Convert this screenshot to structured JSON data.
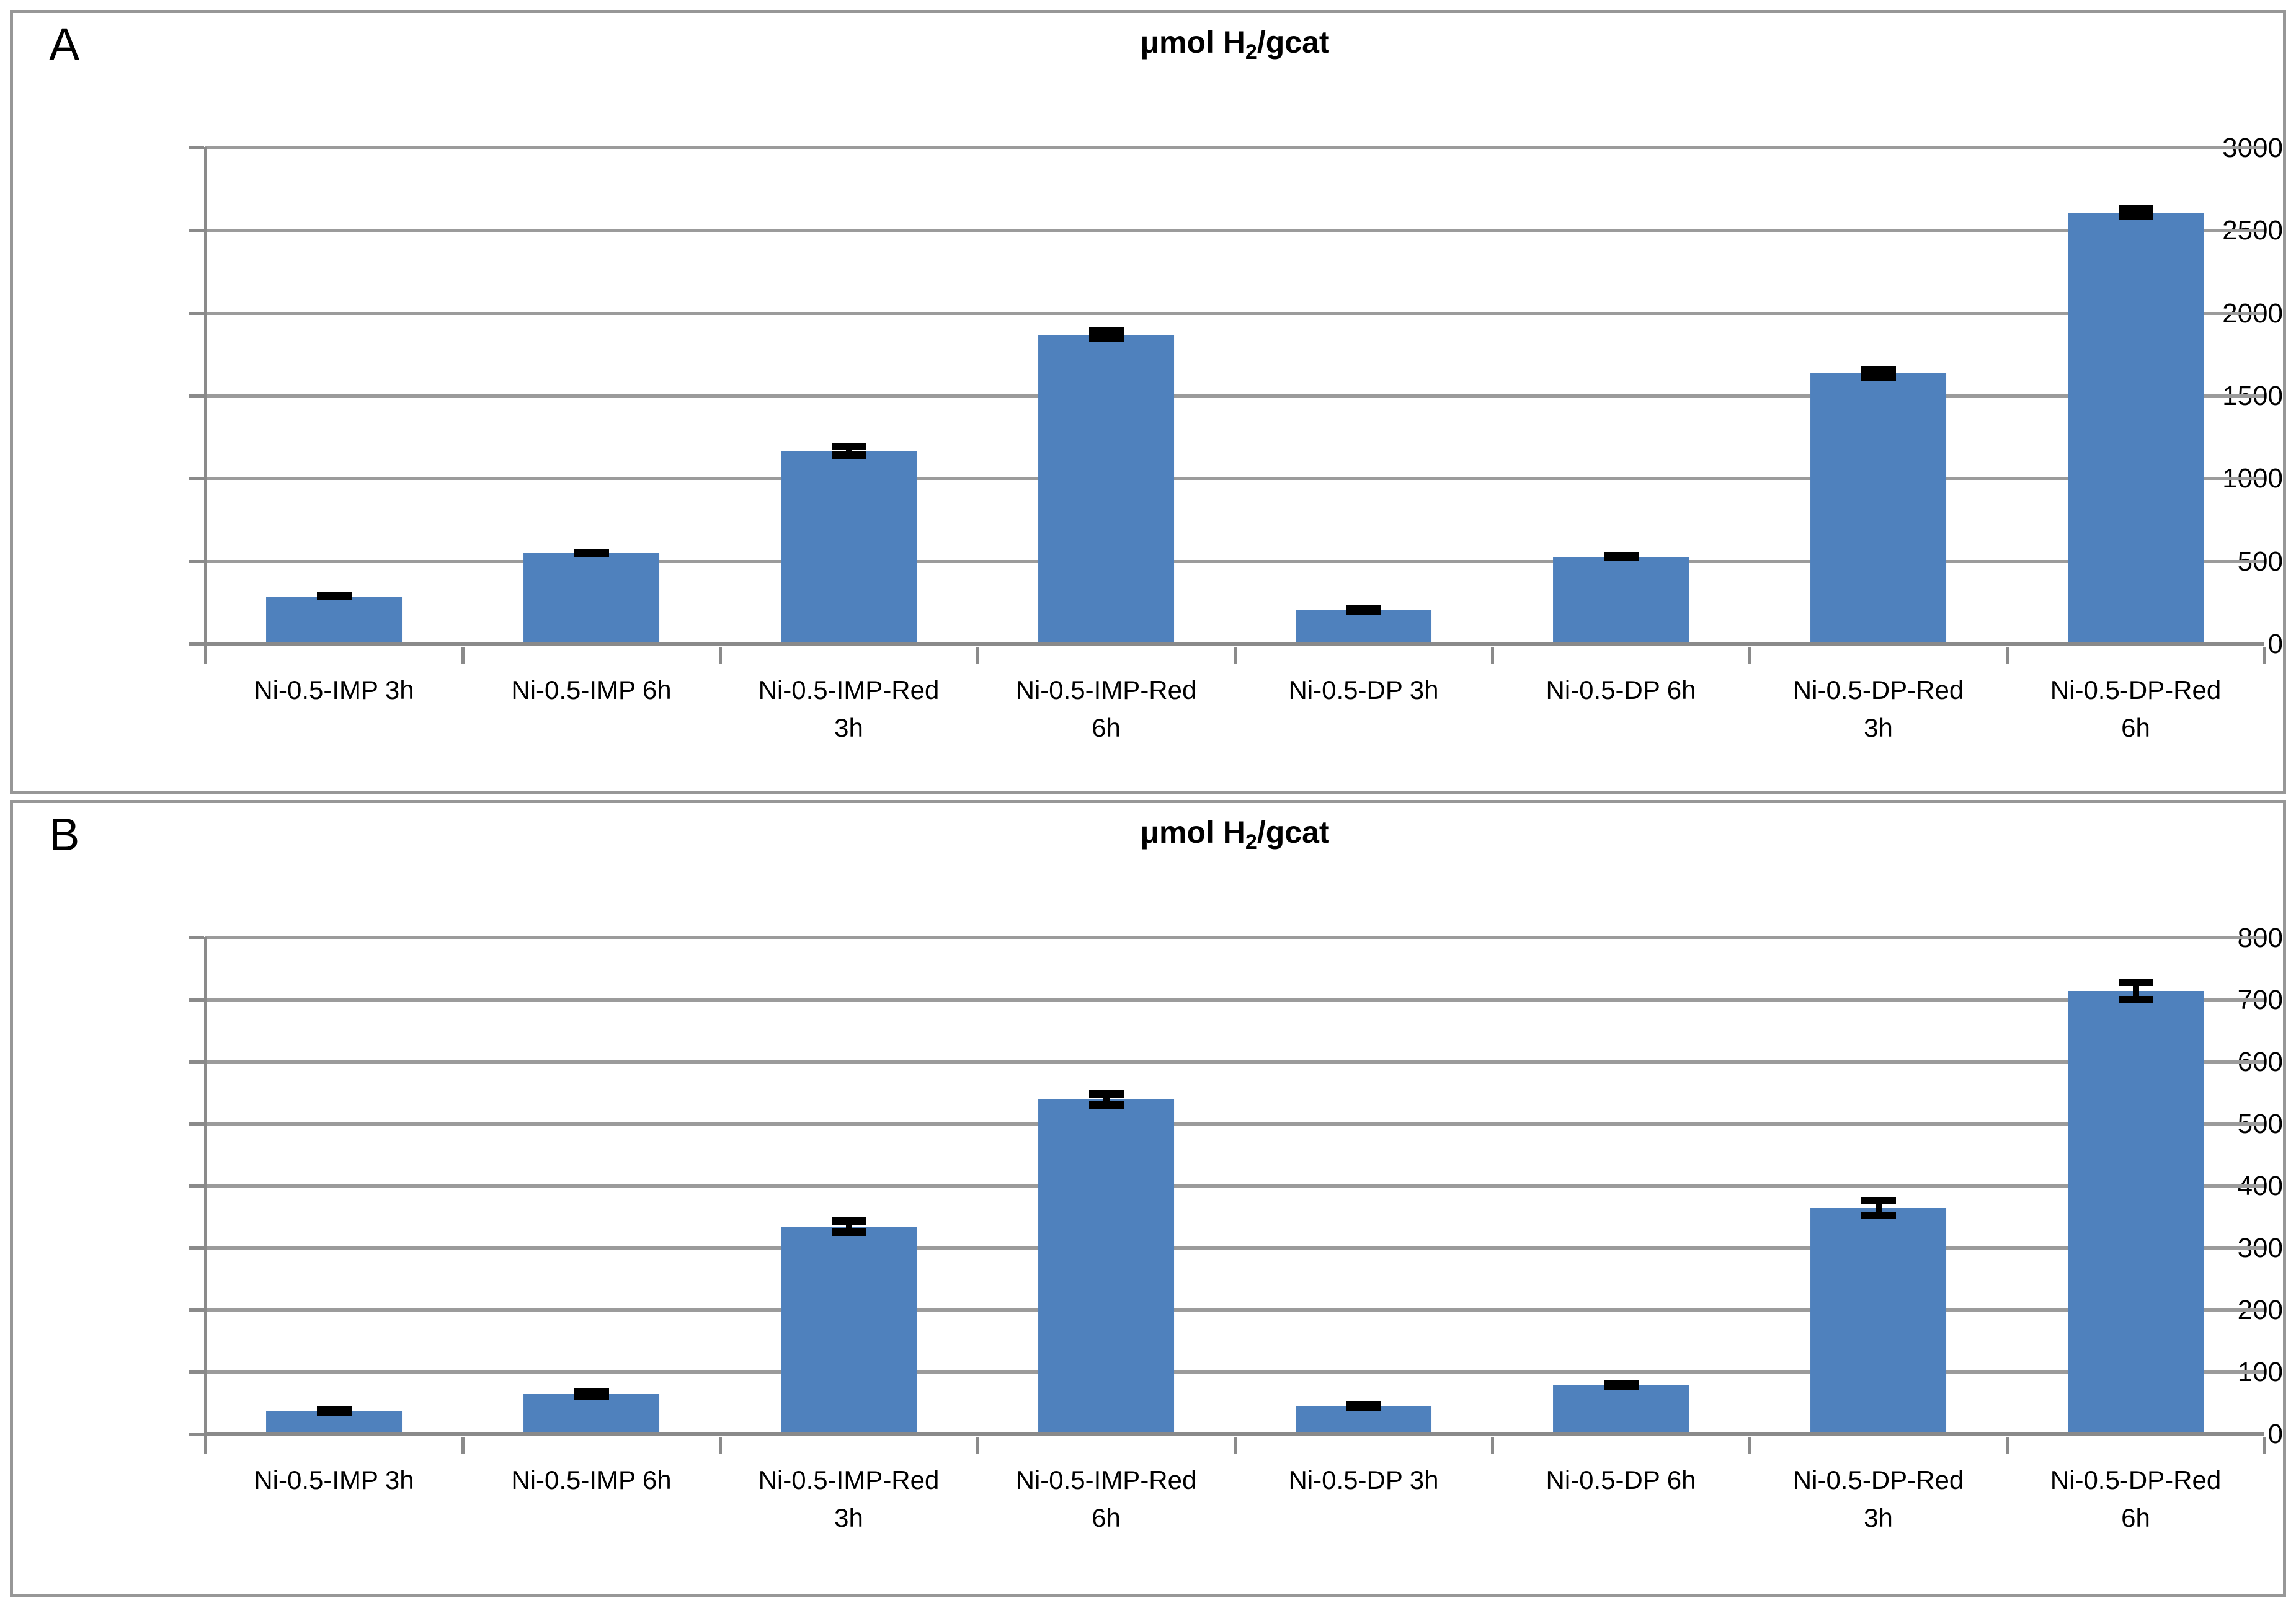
{
  "figure_type": "two-panel bar chart figure",
  "colors": {
    "bar": "#4F81BD",
    "gridline": "#9b9b9b",
    "axis": "#8a8a8a",
    "panel_border": "#979797",
    "error_bar": "#000000",
    "text": "#000000",
    "background": "#ffffff"
  },
  "chart_data": [
    {
      "panel": "A",
      "type": "bar",
      "title": "μmol H2/gcat",
      "title_parts": {
        "pre": "μmol H",
        "sub": "2",
        "post": "/gcat"
      },
      "xlabel": "",
      "ylabel": "",
      "categories": [
        "Ni-0.5-IMP 3h",
        "Ni-0.5-IMP 6h",
        "Ni-0.5-IMP-Red 3h",
        "Ni-0.5-IMP-Red 6h",
        "Ni-0.5-DP 3h",
        "Ni-0.5-DP 6h",
        "Ni-0.5-DP-Red 3h",
        "Ni-0.5-DP-Red 6h"
      ],
      "category_lines": [
        [
          "Ni-0.5-IMP 3h"
        ],
        [
          "Ni-0.5-IMP 6h"
        ],
        [
          "Ni-0.5-IMP-Red",
          "3h"
        ],
        [
          "Ni-0.5-IMP-Red",
          "6h"
        ],
        [
          "Ni-0.5-DP 3h"
        ],
        [
          "Ni-0.5-DP 6h"
        ],
        [
          "Ni-0.5-DP-Red",
          "3h"
        ],
        [
          "Ni-0.5-DP-Red",
          "6h"
        ]
      ],
      "values": [
        290,
        550,
        1170,
        1870,
        210,
        530,
        1640,
        2610
      ],
      "errors": [
        20,
        25,
        50,
        45,
        15,
        18,
        45,
        45
      ],
      "ylim": [
        0,
        3000
      ],
      "ytick_step": 500,
      "yticks": [
        0,
        500,
        1000,
        1500,
        2000,
        2500,
        3000
      ],
      "ytick_labels": [
        "0",
        "500",
        "1000",
        "1500",
        "2000",
        "2500",
        "3000"
      ],
      "grid": true,
      "legend": null,
      "bar_color": "#4F81BD"
    },
    {
      "panel": "B",
      "type": "bar",
      "title": "μmol H2/gcat",
      "title_parts": {
        "pre": "μmol H",
        "sub": "2",
        "post": "/gcat"
      },
      "xlabel": "",
      "ylabel": "",
      "categories": [
        "Ni-0.5-IMP 3h",
        "Ni-0.5-IMP 6h",
        "Ni-0.5-IMP-Red 3h",
        "Ni-0.5-IMP-Red 6h",
        "Ni-0.5-DP 3h",
        "Ni-0.5-DP 6h",
        "Ni-0.5-DP-Red 3h",
        "Ni-0.5-DP-Red 6h"
      ],
      "category_lines": [
        [
          "Ni-0.5-IMP 3h"
        ],
        [
          "Ni-0.5-IMP 6h"
        ],
        [
          "Ni-0.5-IMP-Red",
          "3h"
        ],
        [
          "Ni-0.5-IMP-Red",
          "6h"
        ],
        [
          "Ni-0.5-DP 3h"
        ],
        [
          "Ni-0.5-DP 6h"
        ],
        [
          "Ni-0.5-DP-Red",
          "3h"
        ],
        [
          "Ni-0.5-DP-Red",
          "6h"
        ]
      ],
      "values": [
        38,
        65,
        335,
        540,
        45,
        80,
        365,
        715
      ],
      "errors": [
        8,
        10,
        15,
        15,
        8,
        8,
        18,
        20
      ],
      "ylim": [
        0,
        800
      ],
      "ytick_step": 100,
      "yticks": [
        0,
        100,
        200,
        300,
        400,
        500,
        600,
        700,
        800
      ],
      "ytick_labels": [
        "0",
        "100",
        "200",
        "300",
        "400",
        "500",
        "600",
        "700",
        "800"
      ],
      "grid": true,
      "legend": null,
      "bar_color": "#4F81BD"
    }
  ]
}
